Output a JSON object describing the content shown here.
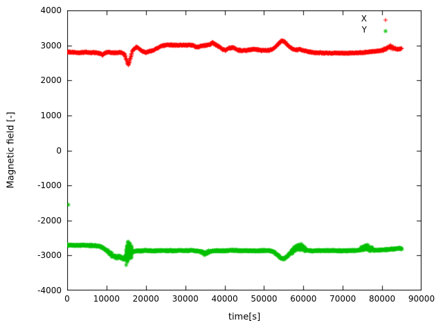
{
  "chart_data": {
    "type": "scatter",
    "title": "",
    "xlabel": "time[s]",
    "ylabel": "Magnetic field [-]",
    "xlim": [
      0,
      90000
    ],
    "ylim": [
      -4000,
      4000
    ],
    "x_ticks": [
      0,
      10000,
      20000,
      30000,
      40000,
      50000,
      60000,
      70000,
      80000,
      90000
    ],
    "y_ticks": [
      -4000,
      -3000,
      -2000,
      -1000,
      0,
      1000,
      2000,
      3000,
      4000
    ],
    "grid": false,
    "legend_position": "top-right",
    "sample_step": 60,
    "series": [
      {
        "name": "X",
        "marker": "plus",
        "color": "#ff0000",
        "noise": 28,
        "noise_regions": [
          [
            8300,
            9700,
            40
          ],
          [
            14700,
            16500,
            70
          ],
          [
            36200,
            40200,
            50
          ],
          [
            41000,
            42400,
            45
          ],
          [
            53000,
            56000,
            45
          ],
          [
            80200,
            83400,
            60
          ]
        ],
        "keypoints": [
          [
            0,
            2810
          ],
          [
            1500,
            2800
          ],
          [
            3000,
            2790
          ],
          [
            4500,
            2805
          ],
          [
            6000,
            2790
          ],
          [
            7000,
            2800
          ],
          [
            8000,
            2775
          ],
          [
            8600,
            2755
          ],
          [
            9000,
            2740
          ],
          [
            9500,
            2775
          ],
          [
            10000,
            2800
          ],
          [
            11000,
            2805
          ],
          [
            12000,
            2790
          ],
          [
            13000,
            2800
          ],
          [
            14000,
            2790
          ],
          [
            14600,
            2750
          ],
          [
            15000,
            2620
          ],
          [
            15300,
            2500
          ],
          [
            15600,
            2470
          ],
          [
            15900,
            2550
          ],
          [
            16200,
            2700
          ],
          [
            16600,
            2830
          ],
          [
            17000,
            2900
          ],
          [
            17500,
            2945
          ],
          [
            18000,
            2930
          ],
          [
            18500,
            2880
          ],
          [
            19000,
            2840
          ],
          [
            19500,
            2815
          ],
          [
            20000,
            2800
          ],
          [
            21000,
            2830
          ],
          [
            22000,
            2870
          ],
          [
            23000,
            2925
          ],
          [
            24000,
            2985
          ],
          [
            25000,
            3005
          ],
          [
            26500,
            3010
          ],
          [
            28000,
            3005
          ],
          [
            29500,
            3010
          ],
          [
            31000,
            3005
          ],
          [
            32000,
            3000
          ],
          [
            32600,
            2965
          ],
          [
            33200,
            2950
          ],
          [
            34000,
            2980
          ],
          [
            34800,
            2995
          ],
          [
            35600,
            3005
          ],
          [
            36400,
            3035
          ],
          [
            37000,
            3060
          ],
          [
            37600,
            3030
          ],
          [
            38200,
            2995
          ],
          [
            38800,
            2945
          ],
          [
            39400,
            2895
          ],
          [
            40000,
            2855
          ],
          [
            40600,
            2885
          ],
          [
            41200,
            2925
          ],
          [
            41800,
            2940
          ],
          [
            42400,
            2920
          ],
          [
            43000,
            2885
          ],
          [
            43600,
            2860
          ],
          [
            44400,
            2850
          ],
          [
            45400,
            2860
          ],
          [
            46400,
            2875
          ],
          [
            47400,
            2890
          ],
          [
            48400,
            2875
          ],
          [
            49400,
            2855
          ],
          [
            50400,
            2855
          ],
          [
            51400,
            2865
          ],
          [
            52200,
            2895
          ],
          [
            52800,
            2945
          ],
          [
            53400,
            3020
          ],
          [
            54000,
            3095
          ],
          [
            54500,
            3130
          ],
          [
            55000,
            3120
          ],
          [
            55500,
            3070
          ],
          [
            56000,
            3005
          ],
          [
            56600,
            2950
          ],
          [
            57200,
            2900
          ],
          [
            57800,
            2870
          ],
          [
            58400,
            2875
          ],
          [
            59000,
            2890
          ],
          [
            59600,
            2870
          ],
          [
            60200,
            2845
          ],
          [
            61200,
            2820
          ],
          [
            62200,
            2800
          ],
          [
            63500,
            2790
          ],
          [
            65000,
            2782
          ],
          [
            67000,
            2780
          ],
          [
            69000,
            2780
          ],
          [
            71000,
            2780
          ],
          [
            73000,
            2783
          ],
          [
            74500,
            2790
          ],
          [
            76000,
            2808
          ],
          [
            77500,
            2822
          ],
          [
            79000,
            2840
          ],
          [
            80200,
            2865
          ],
          [
            81000,
            2915
          ],
          [
            81600,
            2950
          ],
          [
            82100,
            2960
          ],
          [
            82600,
            2935
          ],
          [
            83200,
            2900
          ],
          [
            84000,
            2888
          ],
          [
            84600,
            2900
          ],
          [
            85000,
            2910
          ]
        ]
      },
      {
        "name": "Y",
        "marker": "asterisk",
        "color": "#00c000",
        "noise": 28,
        "noise_regions": [
          [
            10200,
            14800,
            75
          ],
          [
            15000,
            16400,
            320
          ],
          [
            34000,
            36200,
            65
          ],
          [
            57000,
            60600,
            110
          ],
          [
            74700,
            77400,
            95
          ]
        ],
        "outliers": [
          [
            300,
            -1550
          ]
        ],
        "keypoints": [
          [
            0,
            -2705
          ],
          [
            1500,
            -2710
          ],
          [
            3000,
            -2715
          ],
          [
            4500,
            -2710
          ],
          [
            6000,
            -2715
          ],
          [
            7500,
            -2725
          ],
          [
            8400,
            -2740
          ],
          [
            9000,
            -2780
          ],
          [
            9600,
            -2825
          ],
          [
            10200,
            -2880
          ],
          [
            10800,
            -2935
          ],
          [
            11400,
            -2985
          ],
          [
            12000,
            -3025
          ],
          [
            12600,
            -3050
          ],
          [
            13200,
            -3045
          ],
          [
            13800,
            -3075
          ],
          [
            14300,
            -3100
          ],
          [
            14700,
            -3060
          ],
          [
            15100,
            -2975
          ],
          [
            15500,
            -2885
          ],
          [
            16000,
            -2880
          ],
          [
            16600,
            -2900
          ],
          [
            17200,
            -2875
          ],
          [
            17800,
            -2865
          ],
          [
            18600,
            -2870
          ],
          [
            19600,
            -2858
          ],
          [
            21000,
            -2862
          ],
          [
            22500,
            -2870
          ],
          [
            24000,
            -2855
          ],
          [
            25500,
            -2862
          ],
          [
            27000,
            -2868
          ],
          [
            28500,
            -2855
          ],
          [
            30000,
            -2868
          ],
          [
            31500,
            -2860
          ],
          [
            33000,
            -2868
          ],
          [
            34000,
            -2890
          ],
          [
            34600,
            -2925
          ],
          [
            35000,
            -2950
          ],
          [
            35500,
            -2920
          ],
          [
            36000,
            -2890
          ],
          [
            37000,
            -2870
          ],
          [
            38500,
            -2862
          ],
          [
            40000,
            -2868
          ],
          [
            41500,
            -2860
          ],
          [
            43000,
            -2858
          ],
          [
            44500,
            -2868
          ],
          [
            46000,
            -2860
          ],
          [
            47500,
            -2868
          ],
          [
            49000,
            -2860
          ],
          [
            50500,
            -2855
          ],
          [
            52000,
            -2878
          ],
          [
            52600,
            -2912
          ],
          [
            53200,
            -2965
          ],
          [
            53800,
            -3025
          ],
          [
            54400,
            -3080
          ],
          [
            54900,
            -3100
          ],
          [
            55400,
            -3075
          ],
          [
            55900,
            -3020
          ],
          [
            56400,
            -2960
          ],
          [
            56900,
            -2905
          ],
          [
            57400,
            -2860
          ],
          [
            58000,
            -2810
          ],
          [
            58600,
            -2775
          ],
          [
            59200,
            -2758
          ],
          [
            59800,
            -2780
          ],
          [
            60400,
            -2825
          ],
          [
            61000,
            -2858
          ],
          [
            62000,
            -2868
          ],
          [
            63500,
            -2860
          ],
          [
            65000,
            -2862
          ],
          [
            66500,
            -2865
          ],
          [
            68000,
            -2860
          ],
          [
            69500,
            -2865
          ],
          [
            71000,
            -2860
          ],
          [
            72500,
            -2862
          ],
          [
            74000,
            -2848
          ],
          [
            74700,
            -2825
          ],
          [
            75400,
            -2790
          ],
          [
            76000,
            -2762
          ],
          [
            76600,
            -2792
          ],
          [
            77200,
            -2822
          ],
          [
            77800,
            -2845
          ],
          [
            78600,
            -2852
          ],
          [
            80000,
            -2842
          ],
          [
            81500,
            -2828
          ],
          [
            83000,
            -2812
          ],
          [
            84200,
            -2802
          ],
          [
            85000,
            -2800
          ]
        ]
      }
    ]
  }
}
